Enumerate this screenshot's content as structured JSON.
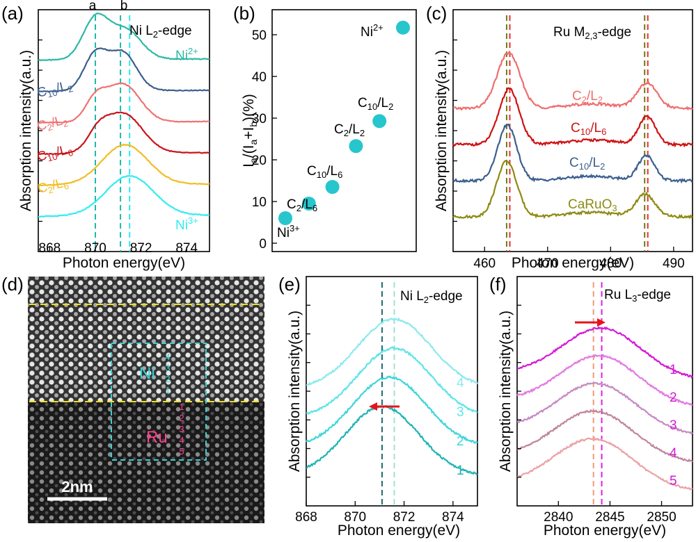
{
  "chart_data": [
    {
      "panel": "(a)",
      "type": "line",
      "title": "Ni L2-edge",
      "xlabel": "Photon energy(eV)",
      "ylabel": "Absorption intensity(a.u.)",
      "xlim": [
        867.5,
        875
      ],
      "xticks": [
        "868",
        "870",
        "872",
        "874"
      ],
      "peak_labels": [
        "a",
        "b"
      ],
      "vlines": [
        {
          "x": 870.0,
          "color": "#1fb8ad"
        },
        {
          "x": 871.1,
          "color": "#1fb8ad"
        },
        {
          "x": 871.5,
          "color": "#2ee8ee"
        }
      ],
      "series": [
        {
          "name": "Ni2+",
          "color": "#2cb8a6",
          "offset": 5,
          "peaks": [
            [
              870.0,
              1.0,
              0.55
            ],
            [
              871.3,
              0.75,
              0.7
            ]
          ]
        },
        {
          "name": "C10/L2",
          "color": "#3b5f8c",
          "offset": 4,
          "peaks": [
            [
              870.0,
              0.9,
              0.5
            ],
            [
              871.2,
              0.95,
              0.6
            ]
          ]
        },
        {
          "name": "C2/L2",
          "color": "#ef7272",
          "offset": 3,
          "peaks": [
            [
              870.0,
              0.5,
              0.45
            ],
            [
              871.2,
              0.95,
              0.75
            ]
          ]
        },
        {
          "name": "C10/L6",
          "color": "#c8141a",
          "offset": 2,
          "peaks": [
            [
              870.1,
              0.35,
              0.45
            ],
            [
              871.2,
              1.0,
              0.85
            ]
          ]
        },
        {
          "name": "C2/L6",
          "color": "#f2bd22",
          "offset": 1,
          "peaks": [
            [
              871.3,
              1.0,
              1.0
            ]
          ]
        },
        {
          "name": "Ni3+",
          "color": "#32ecf2",
          "offset": 0,
          "peaks": [
            [
              871.5,
              1.0,
              1.05
            ]
          ]
        }
      ]
    },
    {
      "panel": "(b)",
      "type": "scatter",
      "ylabel": "Ia/(Ia+Ib)(%)",
      "ylim": [
        -2,
        56
      ],
      "yticks": [
        "0",
        "10",
        "20",
        "30",
        "40",
        "50"
      ],
      "color": "#26c6cc",
      "points": [
        {
          "label": "Ni3+",
          "y": 6
        },
        {
          "label": "C2/L6",
          "y": 9.5
        },
        {
          "label": "C10/L6",
          "y": 13.5
        },
        {
          "label": "C2/L2",
          "y": 23.3
        },
        {
          "label": "C10/L2",
          "y": 29.3
        },
        {
          "label": "Ni2+",
          "y": 51.7
        }
      ]
    },
    {
      "panel": "(c)",
      "type": "line",
      "title": "Ru M2,3-edge",
      "xlabel": "Photon energy(eV)",
      "ylabel": "Absorption intensity(a.u.)",
      "xlim": [
        455,
        493
      ],
      "xticks": [
        "460",
        "470",
        "480",
        "490"
      ],
      "vlines": [
        {
          "x": 463.5,
          "color": "#6e7c10"
        },
        {
          "x": 464.0,
          "color": "#e83030"
        },
        {
          "x": 485.4,
          "color": "#6e7c10"
        },
        {
          "x": 485.9,
          "color": "#e83030"
        }
      ],
      "series": [
        {
          "name": "C2/L2",
          "color": "#ee6d6d",
          "offset": 3,
          "peaks": [
            [
              463.8,
              1.0,
              1.8
            ],
            [
              485.8,
              0.45,
              1.6
            ]
          ]
        },
        {
          "name": "C10/L6",
          "color": "#cf1010",
          "offset": 2,
          "peaks": [
            [
              463.9,
              1.0,
              1.6
            ],
            [
              485.8,
              0.5,
              1.3
            ]
          ]
        },
        {
          "name": "C10/L2",
          "color": "#3c5f8e",
          "offset": 1,
          "peaks": [
            [
              463.6,
              1.0,
              1.5
            ],
            [
              485.7,
              0.45,
              1.3
            ]
          ]
        },
        {
          "name": "CaRuO3",
          "color": "#8d8a12",
          "offset": 0,
          "peaks": [
            [
              463.5,
              1.0,
              1.6
            ],
            [
              485.5,
              0.4,
              1.5
            ]
          ]
        }
      ]
    },
    {
      "panel": "(e)",
      "type": "line",
      "title": "Ni L2-edge",
      "xlabel": "Photon energy(eV)",
      "ylabel": "Absorption intensity(a.u.)",
      "xlim": [
        868,
        875
      ],
      "xticks": [
        "868",
        "870",
        "872",
        "874"
      ],
      "vlines": [
        {
          "x": 871.1,
          "color": "#1f6a6e"
        },
        {
          "x": 871.6,
          "color": "#9fe0d4"
        }
      ],
      "series": [
        {
          "name": "4",
          "color": "#8ee9ee",
          "offset": 3,
          "peak": 871.6
        },
        {
          "name": "3",
          "color": "#5fe4ea",
          "offset": 2,
          "peak": 871.6
        },
        {
          "name": "2",
          "color": "#3fd6da",
          "offset": 1,
          "peak": 871.4
        },
        {
          "name": "1",
          "color": "#20b3b5",
          "offset": 0,
          "peak": 871.1
        }
      ]
    },
    {
      "panel": "(f)",
      "type": "line",
      "title": "Ru L3-edge",
      "xlabel": "Photon energy(eV)",
      "ylabel": "Absorption intensity(a.u.)",
      "xlim": [
        2836,
        2853
      ],
      "xticks": [
        "2840",
        "2845",
        "2850"
      ],
      "vlines": [
        {
          "x": 2843.4,
          "color": "#ef9a7a"
        },
        {
          "x": 2844.2,
          "color": "#e020e0"
        }
      ],
      "series": [
        {
          "name": "1",
          "color": "#d41ad4",
          "offset": 4,
          "peak": 2844.2
        },
        {
          "name": "2",
          "color": "#e27ae2",
          "offset": 3,
          "peak": 2844.0
        },
        {
          "name": "3",
          "color": "#c68ac4",
          "offset": 2,
          "peak": 2843.7
        },
        {
          "name": "4",
          "color": "#c0869a",
          "offset": 1,
          "peak": 2843.5
        },
        {
          "name": "5",
          "color": "#eba2a6",
          "offset": 0,
          "peak": 2843.4
        }
      ]
    }
  ],
  "panels": {
    "a": "(a)",
    "b": "(b)",
    "c": "(c)",
    "d": "(d)",
    "e": "(e)",
    "f": "(f)"
  },
  "image_d": {
    "scale_bar": "2nm",
    "region_ni": "Ni",
    "region_ru": "Ru",
    "ni_layers": "4321",
    "ru_layers": "12345"
  }
}
